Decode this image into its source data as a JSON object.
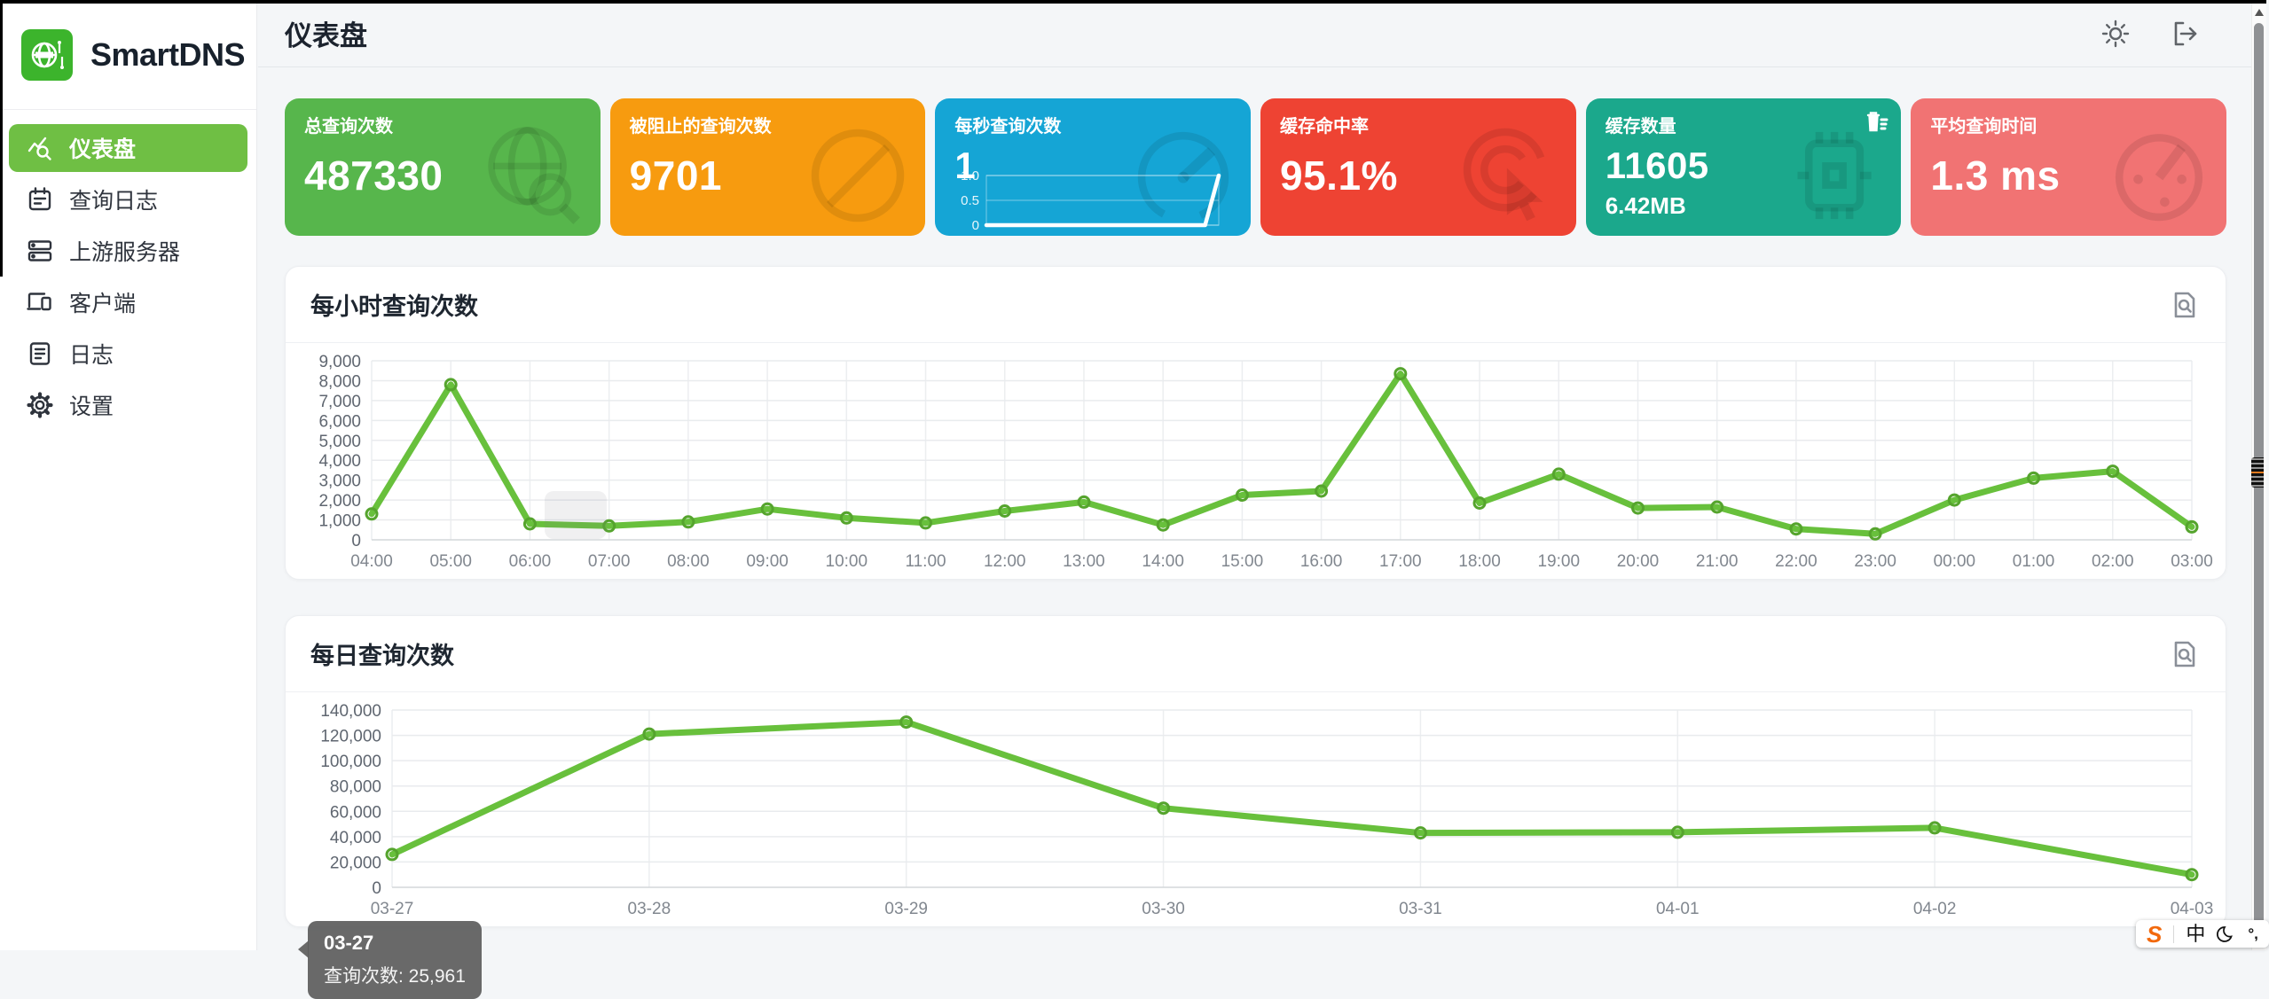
{
  "app": {
    "brand": "SmartDNS"
  },
  "header": {
    "title": "仪表盘"
  },
  "sidebar": {
    "items": [
      {
        "label": "仪表盘",
        "active": true
      },
      {
        "label": "查询日志",
        "active": false
      },
      {
        "label": "上游服务器",
        "active": false
      },
      {
        "label": "客户端",
        "active": false
      },
      {
        "label": "日志",
        "active": false
      },
      {
        "label": "设置",
        "active": false
      }
    ]
  },
  "stat_cards": [
    {
      "label": "总查询次数",
      "value": "487330",
      "color": "#57b64c",
      "watermark": "globe-search-icon"
    },
    {
      "label": "被阻止的查询次数",
      "value": "9701",
      "color": "#f79b0f",
      "watermark": "block-icon"
    },
    {
      "label": "每秒查询次数",
      "value": "1",
      "color": "#15a5d5",
      "watermark": "gauge-icon",
      "mini_chart": {
        "ylim": [
          0,
          1
        ],
        "yticks": [
          "1.0",
          "0.5",
          "0"
        ],
        "values": [
          0,
          0,
          0,
          0,
          0,
          0,
          0,
          0,
          0,
          0,
          0,
          0,
          0,
          0,
          0,
          0,
          0,
          1
        ]
      }
    },
    {
      "label": "缓存命中率",
      "value": "95.1%",
      "color": "#ee4333",
      "watermark": "cursor-click-icon"
    },
    {
      "label": "缓存数量",
      "value": "11605",
      "sub_value": "6.42MB",
      "color": "#1ba88c",
      "watermark": "chip-icon",
      "action": "clear-cache"
    },
    {
      "label": "平均查询时间",
      "value": "1.3 ms",
      "color": "#f17373",
      "watermark": "timer-icon"
    }
  ],
  "chart_data": [
    {
      "type": "line",
      "title": "每小时查询次数",
      "categories": [
        "04:00",
        "05:00",
        "06:00",
        "07:00",
        "08:00",
        "09:00",
        "10:00",
        "11:00",
        "12:00",
        "13:00",
        "14:00",
        "15:00",
        "16:00",
        "17:00",
        "18:00",
        "19:00",
        "20:00",
        "21:00",
        "22:00",
        "23:00",
        "00:00",
        "01:00",
        "02:00",
        "03:00"
      ],
      "values": [
        1300,
        7800,
        800,
        700,
        900,
        1550,
        1100,
        850,
        1450,
        1900,
        750,
        2250,
        2450,
        8350,
        1850,
        3300,
        1600,
        1650,
        550,
        300,
        2000,
        3100,
        3450,
        650
      ],
      "ylim": [
        0,
        9000
      ],
      "ytick_step": 1000,
      "line_color": "#68c03c",
      "marker_color": "#55a42d",
      "grid": true,
      "legend": "none"
    },
    {
      "type": "line",
      "title": "每日查询次数",
      "categories": [
        "03-27",
        "03-28",
        "03-29",
        "03-30",
        "03-31",
        "04-01",
        "04-02",
        "04-03"
      ],
      "values": [
        25961,
        121000,
        130500,
        62500,
        43000,
        43500,
        47000,
        10000
      ],
      "ylim": [
        0,
        140000
      ],
      "ytick_step": 20000,
      "line_color": "#68c03c",
      "marker_color": "#55a42d",
      "grid": true,
      "legend": "none",
      "tooltip": {
        "title": "03-27",
        "text": "查询次数: 25,961"
      }
    }
  ],
  "ime_bar": {
    "logo": "S",
    "mode": "中"
  }
}
